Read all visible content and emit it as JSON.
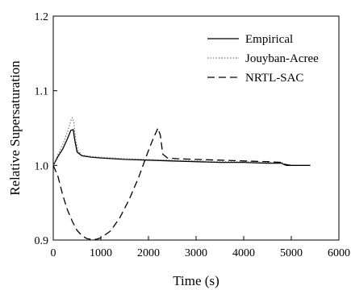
{
  "chart_data": {
    "type": "line",
    "title": "",
    "xlabel": "Time (s)",
    "ylabel": "Relative Supersaturation",
    "xlim": [
      0,
      6000
    ],
    "ylim": [
      0.9,
      1.2
    ],
    "x_ticks": [
      "0",
      "1000",
      "2000",
      "3000",
      "4000",
      "5000",
      "6000"
    ],
    "y_ticks": [
      "0.9",
      "1.0",
      "1.1",
      "1.2"
    ],
    "grid": false,
    "legend_position": "top-right",
    "series": [
      {
        "name": "Empirical",
        "style": "solid",
        "color": "#000000",
        "x": [
          0,
          100,
          200,
          300,
          370,
          420,
          450,
          500,
          600,
          800,
          1000,
          1500,
          2000,
          2500,
          3000,
          3500,
          4000,
          4500,
          4800,
          4850,
          4900,
          5000,
          5400
        ],
        "y": [
          1.0,
          1.012,
          1.022,
          1.036,
          1.047,
          1.048,
          1.035,
          1.018,
          1.013,
          1.011,
          1.01,
          1.008,
          1.007,
          1.006,
          1.005,
          1.004,
          1.004,
          1.003,
          1.003,
          1.001,
          1.0,
          1.0,
          1.0
        ]
      },
      {
        "name": "Jouyban-Acree",
        "style": "dotted",
        "color": "#777777",
        "x": [
          0,
          100,
          200,
          300,
          370,
          400,
          430,
          470,
          520,
          600,
          800,
          1000,
          1500,
          2000,
          2500,
          3000,
          3500,
          4000,
          4500,
          4800,
          4850,
          4900,
          5000
        ],
        "y": [
          1.0,
          1.015,
          1.028,
          1.045,
          1.06,
          1.064,
          1.058,
          1.035,
          1.02,
          1.014,
          1.012,
          1.011,
          1.009,
          1.008,
          1.007,
          1.006,
          1.005,
          1.005,
          1.004,
          1.004,
          1.002,
          1.001,
          1.0
        ]
      },
      {
        "name": "NRTL-SAC",
        "style": "dashed",
        "color": "#000000",
        "x": [
          0,
          100,
          200,
          300,
          400,
          500,
          600,
          700,
          800,
          900,
          1000,
          1200,
          1400,
          1600,
          1800,
          2000,
          2100,
          2200,
          2250,
          2300,
          2400,
          2600,
          3000,
          3500,
          4000,
          4500,
          4800,
          4850,
          4900,
          5000
        ],
        "y": [
          1.0,
          0.985,
          0.96,
          0.94,
          0.925,
          0.913,
          0.906,
          0.902,
          0.901,
          0.901,
          0.903,
          0.912,
          0.93,
          0.955,
          0.985,
          1.02,
          1.036,
          1.05,
          1.04,
          1.015,
          1.01,
          1.009,
          1.008,
          1.007,
          1.006,
          1.005,
          1.004,
          1.002,
          1.001,
          1.0
        ]
      }
    ]
  }
}
